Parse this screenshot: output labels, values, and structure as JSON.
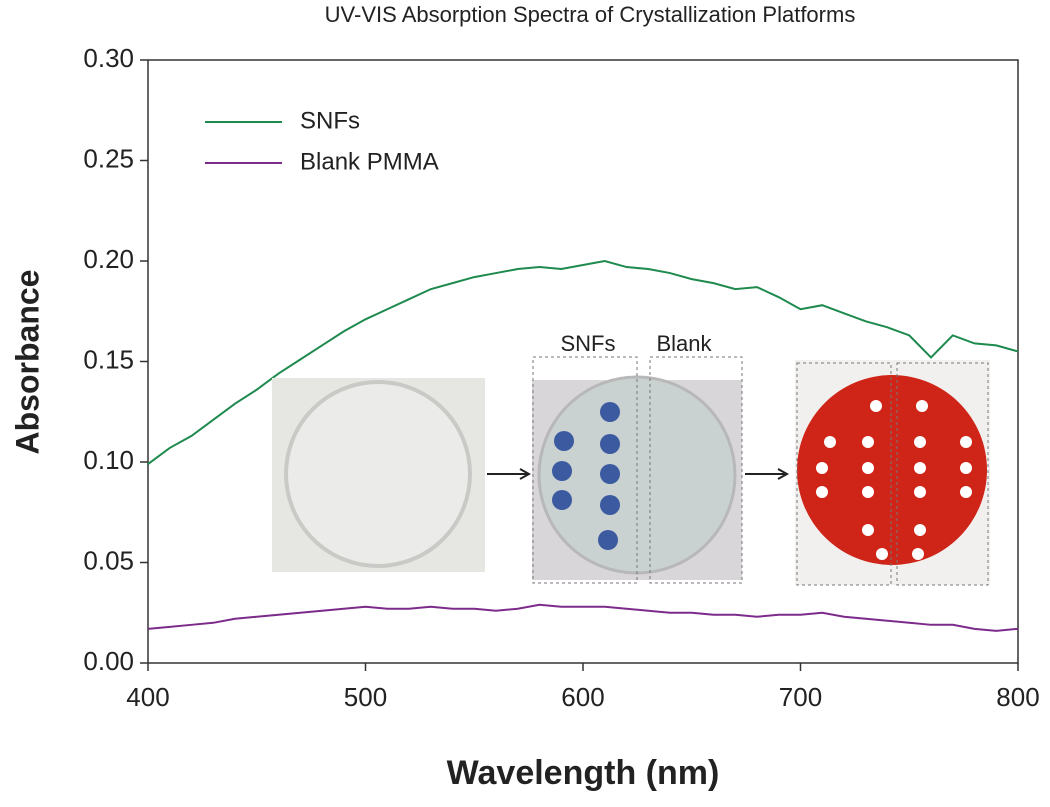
{
  "chart_data": {
    "type": "line",
    "title": "UV-VIS Absorption Spectra of Crystallization Platforms",
    "x_label": "Wavelength (nm)",
    "y_label": "Absorbance",
    "x": [
      400,
      410,
      420,
      430,
      440,
      450,
      460,
      470,
      480,
      490,
      500,
      510,
      520,
      530,
      540,
      550,
      560,
      570,
      580,
      590,
      600,
      610,
      620,
      630,
      640,
      650,
      660,
      670,
      680,
      690,
      700,
      710,
      720,
      730,
      740,
      750,
      760,
      770,
      780,
      790,
      800
    ],
    "series": [
      {
        "name": "SNFs",
        "color": "#1e8a4e",
        "values": [
          0.099,
          0.107,
          0.113,
          0.121,
          0.129,
          0.136,
          0.144,
          0.151,
          0.158,
          0.165,
          0.171,
          0.176,
          0.181,
          0.186,
          0.189,
          0.192,
          0.194,
          0.196,
          0.197,
          0.196,
          0.198,
          0.2,
          0.197,
          0.196,
          0.194,
          0.191,
          0.189,
          0.186,
          0.187,
          0.182,
          0.176,
          0.178,
          0.174,
          0.17,
          0.167,
          0.163,
          0.152,
          0.163,
          0.159,
          0.158,
          0.155
        ]
      },
      {
        "name": "Blank PMMA",
        "color": "#7d2b8b",
        "values": [
          0.017,
          0.018,
          0.019,
          0.02,
          0.022,
          0.023,
          0.024,
          0.025,
          0.026,
          0.027,
          0.028,
          0.027,
          0.027,
          0.028,
          0.027,
          0.027,
          0.026,
          0.027,
          0.029,
          0.028,
          0.028,
          0.028,
          0.027,
          0.026,
          0.025,
          0.025,
          0.024,
          0.024,
          0.023,
          0.024,
          0.024,
          0.025,
          0.023,
          0.022,
          0.021,
          0.02,
          0.019,
          0.019,
          0.017,
          0.016,
          0.017
        ]
      }
    ],
    "xlim": [
      400,
      800
    ],
    "ylim": [
      0,
      0.3
    ],
    "xticks": [
      400,
      500,
      600,
      700,
      800
    ],
    "yticks": [
      {
        "value": 0,
        "label": "0.00"
      },
      {
        "value": 0.05,
        "label": "0.05"
      },
      {
        "value": 0.1,
        "label": "0.10"
      },
      {
        "value": 0.15,
        "label": "0.15"
      },
      {
        "value": 0.2,
        "label": "0.20"
      },
      {
        "value": 0.25,
        "label": "0.25"
      },
      {
        "value": 0.3,
        "label": "0.30"
      }
    ],
    "legend": "upper left",
    "inset_labels": [
      "SNFs",
      "Blank"
    ]
  }
}
